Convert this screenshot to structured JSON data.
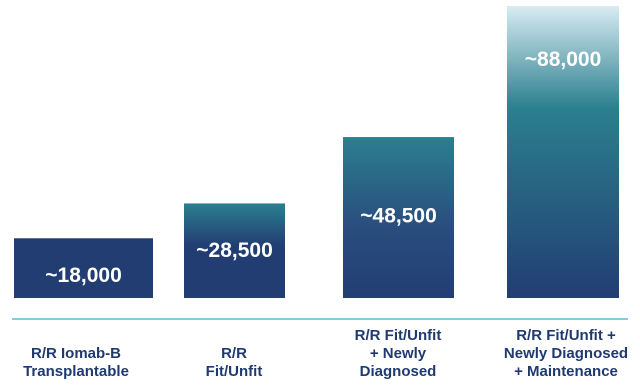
{
  "chart_data": {
    "type": "bar",
    "title": "",
    "xlabel": "",
    "ylabel": "",
    "categories": [
      [
        "R/R Iomab-B",
        "Transplantable"
      ],
      [
        "R/R",
        "Fit/Unfit"
      ],
      [
        "R/R Fit/Unfit",
        "+ Newly",
        "Diagnosed"
      ],
      [
        "R/R Fit/Unfit +",
        "Newly Diagnosed",
        "+ Maintenance"
      ]
    ],
    "values": [
      18000,
      28500,
      48500,
      88000
    ],
    "data_labels": [
      "~18,000",
      "~28,500",
      "~48,500",
      "~88,000"
    ],
    "ylim": [
      0,
      88000
    ],
    "grid": false,
    "colors": {
      "bar_dark": "#223d72",
      "bar_teal": "#2b7f8e",
      "bar_light": "#d8ecf2",
      "baseline": "#5fbcd3",
      "category_text": "#1f3a70",
      "value_text": "#ffffff"
    }
  }
}
